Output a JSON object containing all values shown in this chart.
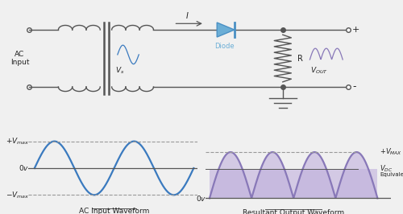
{
  "bg_color": "#f0f0f0",
  "circuit_line_color": "#555555",
  "diode_color": "#6baed6",
  "diode_edge_color": "#4a90c4",
  "ac_wave_color": "#3a7abf",
  "output_wave_color": "#8878b8",
  "output_fill_color": "#c0b0dc",
  "label_color": "#222222",
  "dashed_color": "#999999",
  "title_left": "AC Input Waveform",
  "title_right": "Resultant Output Waveform",
  "ac_input_label": "AC\nInput",
  "vs_label": "V",
  "vs_sub": "s",
  "i_label": "I",
  "diode_label": "Diode",
  "r_label": "R",
  "vout_label": "V",
  "vout_sub": "OUT",
  "plus_label": "+",
  "minus_label": "-",
  "vdc_level": 0.6366
}
